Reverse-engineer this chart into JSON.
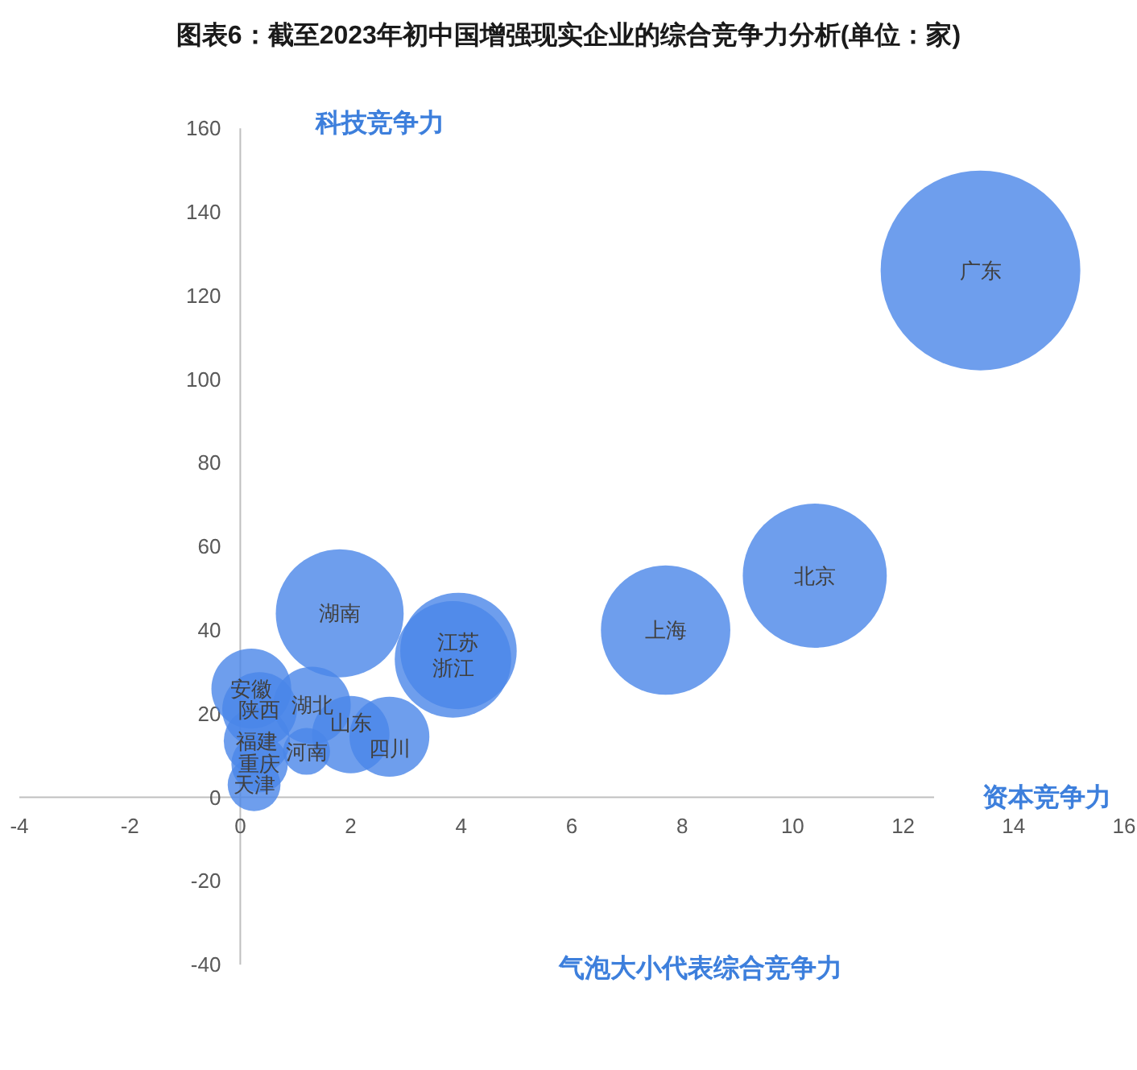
{
  "chart_data": {
    "type": "bubble",
    "title": "图表6：截至2023年初中国增强现实企业的综合竞争力分析(单位：家)",
    "xlabel": "资本竞争力",
    "ylabel": "科技竞争力",
    "annotations": [
      "气泡大小代表综合竞争力"
    ],
    "xlim": [
      -4,
      16
    ],
    "xticks": [
      -4,
      -2,
      0,
      2,
      4,
      6,
      8,
      10,
      12,
      14,
      16
    ],
    "ylim": [
      -40,
      160
    ],
    "yticks": [
      -40,
      -20,
      0,
      20,
      40,
      60,
      80,
      100,
      120,
      140,
      160
    ],
    "series": [
      {
        "name": "广东",
        "color": "#4a86e8",
        "x": [
          13.4
        ],
        "values": [
          126
        ],
        "sizes": [
          1
        ]
      },
      {
        "name": "北京",
        "color": "#4a86e8",
        "x": [
          10.4
        ],
        "values": [
          53
        ],
        "sizes": [
          0.52
        ]
      },
      {
        "name": "上海",
        "color": "#4a86e8",
        "x": [
          7.7
        ],
        "values": [
          40
        ],
        "sizes": [
          0.42
        ]
      },
      {
        "name": "湖南",
        "color": "#4a86e8",
        "x": [
          1.8
        ],
        "values": [
          44
        ],
        "sizes": [
          0.41
        ]
      },
      {
        "name": "江苏",
        "color": "#4a86e8",
        "x": [
          3.95
        ],
        "values": [
          35
        ],
        "sizes": [
          0.34
        ]
      },
      {
        "name": "浙江",
        "color": "#4a86e8",
        "x": [
          3.85
        ],
        "values": [
          33
        ],
        "sizes": [
          0.34
        ]
      },
      {
        "name": "安徽",
        "color": "#4a86e8",
        "x": [
          0.2
        ],
        "values": [
          26
        ],
        "sizes": [
          0.16
        ]
      },
      {
        "name": "陕西",
        "color": "#4a86e8",
        "x": [
          0.35
        ],
        "values": [
          21
        ],
        "sizes": [
          0.14
        ]
      },
      {
        "name": "湖北",
        "color": "#4a86e8",
        "x": [
          1.3
        ],
        "values": [
          22
        ],
        "sizes": [
          0.15
        ]
      },
      {
        "name": "山东",
        "color": "#4a86e8",
        "x": [
          2.0
        ],
        "values": [
          15
        ],
        "sizes": [
          0.15
        ]
      },
      {
        "name": "四川",
        "color": "#4a86e8",
        "x": [
          2.7
        ],
        "values": [
          14.5
        ],
        "sizes": [
          0.16
        ]
      },
      {
        "name": "福建",
        "color": "#4a86e8",
        "x": [
          0.3
        ],
        "values": [
          13.5
        ],
        "sizes": [
          0.11
        ]
      },
      {
        "name": "重庆",
        "color": "#4a86e8",
        "x": [
          0.35
        ],
        "values": [
          8
        ],
        "sizes": [
          0.08
        ]
      },
      {
        "name": "河南",
        "color": "#4a86e8",
        "x": [
          1.2
        ],
        "values": [
          11
        ],
        "sizes": [
          0.055
        ]
      },
      {
        "name": "天津",
        "color": "#4a86e8",
        "x": [
          0.25
        ],
        "values": [
          3
        ],
        "sizes": [
          0.07
        ]
      }
    ]
  }
}
